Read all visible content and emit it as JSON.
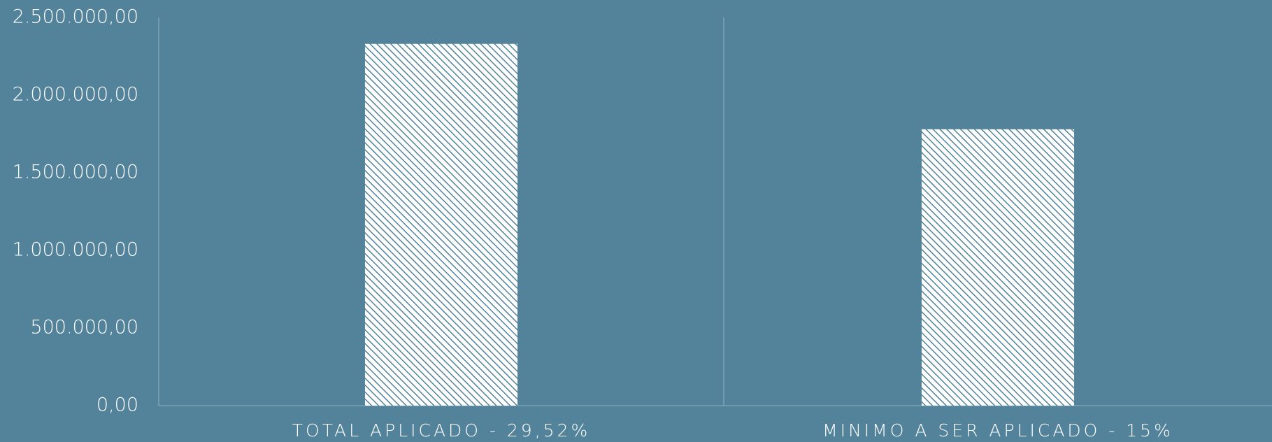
{
  "chart_data": {
    "type": "bar",
    "categories": [
      "TOTAL APLICADO - 29,52%",
      "MINIMO A SER APLICADO - 15%"
    ],
    "values": [
      2330000,
      1780000
    ],
    "color": "#ffffff",
    "ylim": [
      0,
      2500000
    ],
    "yticks": [
      {
        "value": 0,
        "label": "0,00"
      },
      {
        "value": 500000,
        "label": "500.000,00"
      },
      {
        "value": 1000000,
        "label": "1.000.000,00"
      },
      {
        "value": 1500000,
        "label": "1.500.000,00"
      },
      {
        "value": 2000000,
        "label": "2.000.000,00"
      },
      {
        "value": 2500000,
        "label": "2.500.000,00"
      }
    ],
    "grid": false
  }
}
